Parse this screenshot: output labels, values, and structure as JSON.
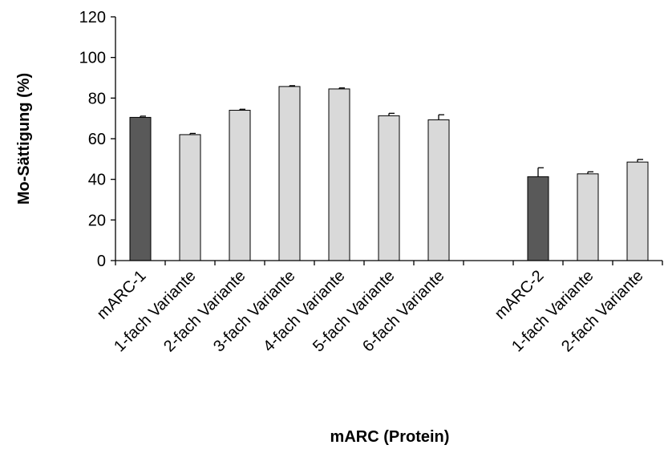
{
  "chart_data": {
    "type": "bar",
    "categories": [
      "mARC-1",
      "1-fach Variante",
      "2-fach Variante",
      "3-fach Variante",
      "4-fach Variante",
      "5-fach Variante",
      "6-fach Variante",
      "",
      "mARC-2",
      "1-fach Variante",
      "2-fach Variante"
    ],
    "values": [
      70.5,
      62,
      74,
      85.7,
      84.5,
      71.3,
      69.3,
      null,
      41.3,
      42.7,
      48.5
    ],
    "errors": [
      0.6,
      0.6,
      0.5,
      0.4,
      0.5,
      1.2,
      2.5,
      null,
      4.4,
      1.0,
      1.3
    ],
    "title": "",
    "xlabel": "mARC (Protein)",
    "ylabel": "Mo-Sättigung (%)",
    "ylim": [
      0,
      120
    ],
    "yticks": [
      0,
      20,
      40,
      60,
      80,
      100,
      120
    ],
    "grid": false,
    "legend": "none",
    "colors": {
      "wildtype": "#595959",
      "variant": "#d9d9d9",
      "outline": "#000000"
    },
    "bar_color_keys": [
      "wildtype",
      "variant",
      "variant",
      "variant",
      "variant",
      "variant",
      "variant",
      null,
      "wildtype",
      "variant",
      "variant"
    ]
  }
}
